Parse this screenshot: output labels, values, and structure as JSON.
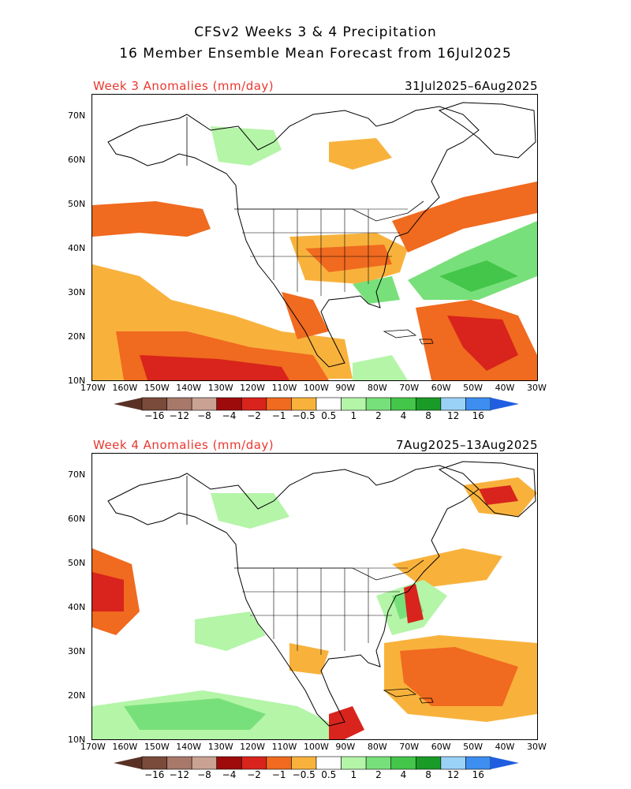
{
  "header": {
    "title_line1": "CFSv2 Weeks 3 & 4 Precipitation",
    "title_line2": "16 Member Ensemble Mean Forecast from 16Jul2025"
  },
  "panels": [
    {
      "label": "Week 3 Anomalies (mm/day)",
      "dates": "31Jul2025–6Aug2025"
    },
    {
      "label": "Week 4 Anomalies (mm/day)",
      "dates": "7Aug2025–13Aug2025"
    }
  ],
  "axes": {
    "lat_ticks": [
      "70N",
      "60N",
      "50N",
      "40N",
      "30N",
      "20N",
      "10N"
    ],
    "lon_ticks": [
      "170W",
      "160W",
      "150W",
      "140W",
      "130W",
      "120W",
      "110W",
      "100W",
      "90W",
      "80W",
      "70W",
      "60W",
      "50W",
      "40W",
      "30W"
    ]
  },
  "colorbar": {
    "labels": [
      "−16",
      "−12",
      "−8",
      "−4",
      "−2",
      "−1",
      "−0.5",
      "0.5",
      "1",
      "2",
      "4",
      "8",
      "12",
      "16"
    ],
    "colors": [
      "#7a4a3a",
      "#a8786a",
      "#c9a294",
      "#9e0b0b",
      "#d8241c",
      "#f06a1f",
      "#f8b23c",
      "#ffffff",
      "#b4f5a8",
      "#78e07a",
      "#44c64a",
      "#1a9a26",
      "#9ad1f7",
      "#3d8ef0"
    ],
    "end_colors": {
      "dry": "#5a3025",
      "wet": "#1f5ee0"
    }
  }
}
